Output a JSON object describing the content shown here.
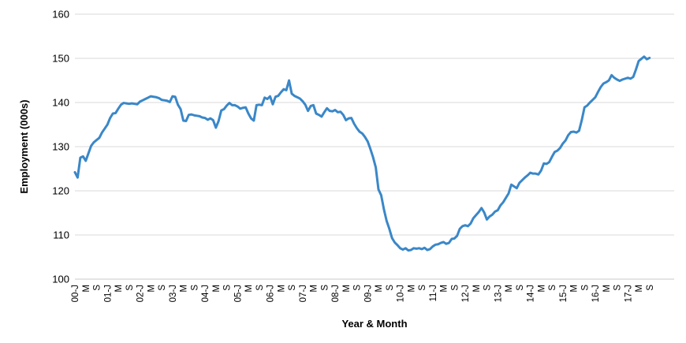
{
  "chart_data": {
    "type": "line",
    "title": "",
    "xlabel": "Year & Month",
    "ylabel": "Employment (000s)",
    "ylim": [
      100,
      160
    ],
    "yticks": [
      100,
      110,
      120,
      130,
      140,
      150,
      160
    ],
    "grid": "horizontal",
    "legend": "none",
    "line_color": "#3a87c8",
    "x_tick_labels": [
      "00-J",
      "M",
      "S",
      "01-J",
      "M",
      "S",
      "02-J",
      "M",
      "S",
      "03-J",
      "M",
      "S",
      "04-J",
      "M",
      "S",
      "05-J",
      "M",
      "S",
      "06-J",
      "M",
      "S",
      "07-J",
      "M",
      "S",
      "08-J",
      "M",
      "S",
      "09-J",
      "M",
      "S",
      "10-J",
      "M",
      "S",
      "11-J",
      "M",
      "S",
      "12-J",
      "M",
      "S",
      "13-J",
      "M",
      "S",
      "14-J",
      "M",
      "S",
      "15-J",
      "M",
      "S",
      "16-J",
      "M",
      "S",
      "17-J",
      "M",
      "S"
    ],
    "x_start": "2000-01",
    "x_step": "1 month",
    "series": [
      {
        "name": "",
        "values": [
          124.2,
          123.0,
          127.5,
          127.8,
          126.8,
          128.5,
          130.2,
          131.0,
          131.5,
          132.0,
          133.2,
          134.1,
          135.0,
          136.5,
          137.5,
          137.6,
          138.6,
          139.5,
          139.9,
          139.8,
          139.7,
          139.8,
          139.7,
          139.6,
          140.2,
          140.5,
          140.8,
          141.1,
          141.4,
          141.3,
          141.2,
          141.0,
          140.6,
          140.5,
          140.4,
          140.1,
          141.4,
          141.3,
          139.5,
          138.5,
          135.9,
          135.8,
          137.2,
          137.3,
          137.1,
          137.0,
          136.9,
          136.6,
          136.5,
          136.1,
          136.4,
          136.0,
          134.3,
          135.8,
          138.2,
          138.5,
          139.3,
          139.9,
          139.4,
          139.4,
          139.1,
          138.6,
          138.8,
          138.9,
          137.5,
          136.4,
          135.9,
          139.4,
          139.5,
          139.4,
          141.1,
          140.8,
          141.4,
          139.6,
          141.3,
          141.5,
          142.3,
          143.0,
          142.8,
          145.0,
          142.0,
          141.5,
          141.2,
          140.9,
          140.3,
          139.5,
          138.1,
          139.2,
          139.4,
          137.5,
          137.2,
          136.8,
          137.8,
          138.7,
          138.1,
          138.0,
          138.3,
          137.8,
          137.9,
          137.2,
          136.0,
          136.4,
          136.5,
          135.2,
          134.2,
          133.4,
          133.0,
          132.2,
          131.2,
          129.5,
          127.6,
          125.3,
          120.3,
          119.0,
          115.8,
          113.2,
          111.4,
          109.3,
          108.3,
          107.7,
          107.0,
          106.7,
          107.0,
          106.5,
          106.6,
          107.0,
          106.9,
          107.0,
          106.8,
          107.1,
          106.6,
          106.8,
          107.4,
          107.8,
          107.9,
          108.2,
          108.4,
          108.0,
          108.2,
          109.1,
          109.2,
          109.8,
          111.4,
          112.0,
          112.2,
          112.0,
          112.6,
          113.8,
          114.5,
          115.2,
          116.1,
          115.1,
          113.5,
          114.2,
          114.6,
          115.3,
          115.6,
          116.7,
          117.4,
          118.4,
          119.4,
          121.4,
          121.0,
          120.6,
          121.8,
          122.4,
          123.0,
          123.5,
          124.1,
          123.9,
          123.9,
          123.7,
          124.6,
          126.2,
          126.1,
          126.5,
          127.7,
          128.8,
          129.1,
          129.7,
          130.7,
          131.4,
          132.6,
          133.3,
          133.4,
          133.2,
          133.6,
          136.0,
          138.9,
          139.3,
          140.0,
          140.6,
          141.2,
          142.4,
          143.5,
          144.3,
          144.6,
          145.0,
          146.2,
          145.6,
          145.2,
          144.9,
          145.2,
          145.4,
          145.6,
          145.4,
          145.8,
          147.5,
          149.4,
          149.9,
          150.4,
          149.8,
          150.1
        ]
      }
    ]
  }
}
